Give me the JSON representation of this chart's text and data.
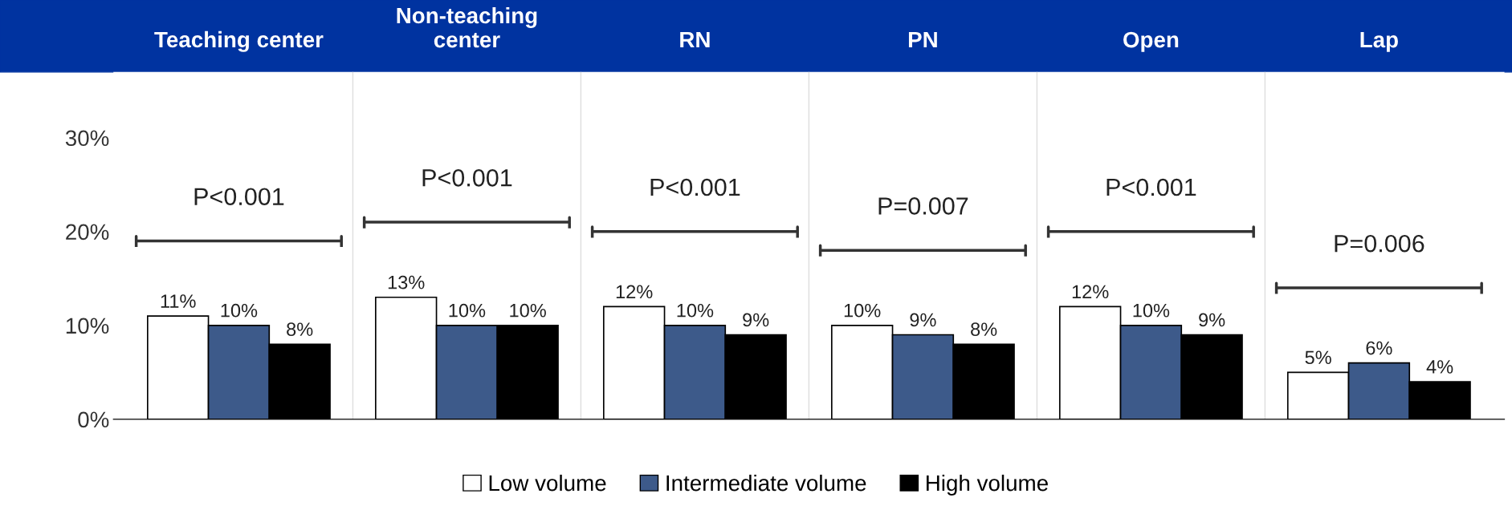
{
  "chart_data": {
    "type": "bar",
    "categories": [
      "Teaching center",
      "Non-teaching\ncenter",
      "RN",
      "PN",
      "Open",
      "Lap"
    ],
    "series": [
      {
        "name": "Low volume",
        "color": "#ffffff",
        "values": [
          11,
          13,
          12,
          10,
          12,
          5
        ],
        "value_labels": [
          "11%",
          "13%",
          "12%",
          "10%",
          "12%",
          "5%"
        ]
      },
      {
        "name": "Intermediate volume",
        "color": "#3d5a8a",
        "values": [
          10,
          10,
          10,
          9,
          10,
          6
        ],
        "value_labels": [
          "10%",
          "10%",
          "10%",
          "9%",
          "10%",
          "6%"
        ]
      },
      {
        "name": "High volume",
        "color": "#000000",
        "values": [
          8,
          10,
          9,
          8,
          9,
          4
        ],
        "value_labels": [
          "8%",
          "10%",
          "9%",
          "8%",
          "9%",
          "4%"
        ]
      }
    ],
    "ylim": [
      0,
      37
    ],
    "yticks": [
      {
        "value": 0,
        "label": "0%"
      },
      {
        "value": 10,
        "label": "10%"
      },
      {
        "value": 20,
        "label": "20%"
      },
      {
        "value": 30,
        "label": "30%"
      }
    ],
    "legend": "bottom",
    "grid": false,
    "annotations": [
      "P<0.001",
      "P<0.001",
      "P<0.001",
      "P=0.007",
      "P<0.001",
      "P=0.006"
    ]
  }
}
